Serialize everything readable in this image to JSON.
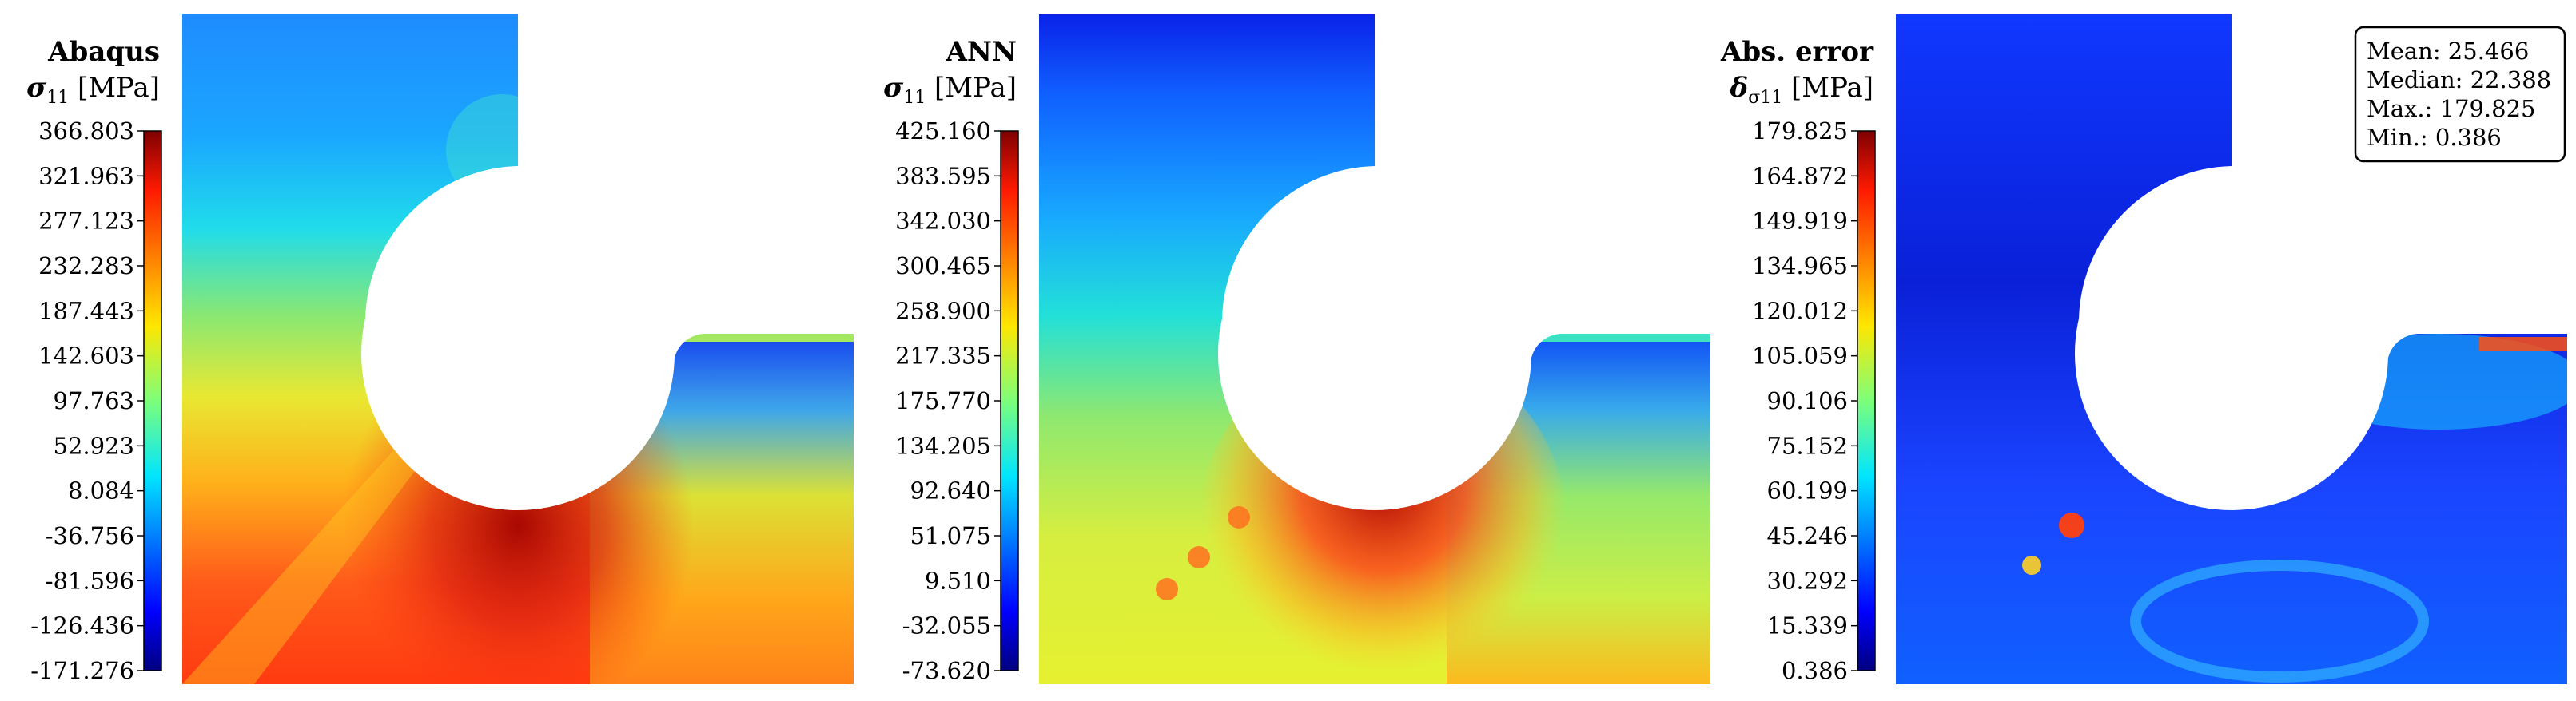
{
  "chart_data": [
    {
      "type": "heatmap",
      "title": "Abaqus",
      "colorbar_label": "σ",
      "colorbar_sub": "11",
      "colorbar_unit": "[MPa]",
      "ticks": [
        "366.803",
        "321.963",
        "277.123",
        "232.283",
        "187.443",
        "142.603",
        "97.763",
        "52.923",
        "8.084",
        "-36.756",
        "-81.596",
        "-126.436",
        "-171.276"
      ],
      "range": [
        -171.276,
        366.803
      ]
    },
    {
      "type": "heatmap",
      "title": "ANN",
      "colorbar_label": "σ",
      "colorbar_sub": "11",
      "colorbar_unit": "[MPa]",
      "ticks": [
        "425.160",
        "383.595",
        "342.030",
        "300.465",
        "258.900",
        "217.335",
        "175.770",
        "134.205",
        "92.640",
        "51.075",
        "9.510",
        "-32.055",
        "-73.620"
      ],
      "range": [
        -73.62,
        425.16
      ]
    },
    {
      "type": "heatmap",
      "title": "Abs. error",
      "colorbar_label": "δ",
      "colorbar_sub": "σ11",
      "colorbar_unit": "[MPa]",
      "ticks": [
        "179.825",
        "164.872",
        "149.919",
        "134.965",
        "120.012",
        "105.059",
        "90.106",
        "75.152",
        "60.199",
        "45.246",
        "30.292",
        "15.339",
        "0.386"
      ],
      "range": [
        0.386,
        179.825
      ],
      "stats": [
        {
          "label": "Mean:",
          "value": "25.466"
        },
        {
          "label": "Median:",
          "value": "22.388"
        },
        {
          "label": "Max.:",
          "value": "179.825"
        },
        {
          "label": "Min.:",
          "value": "0.386"
        }
      ]
    }
  ]
}
